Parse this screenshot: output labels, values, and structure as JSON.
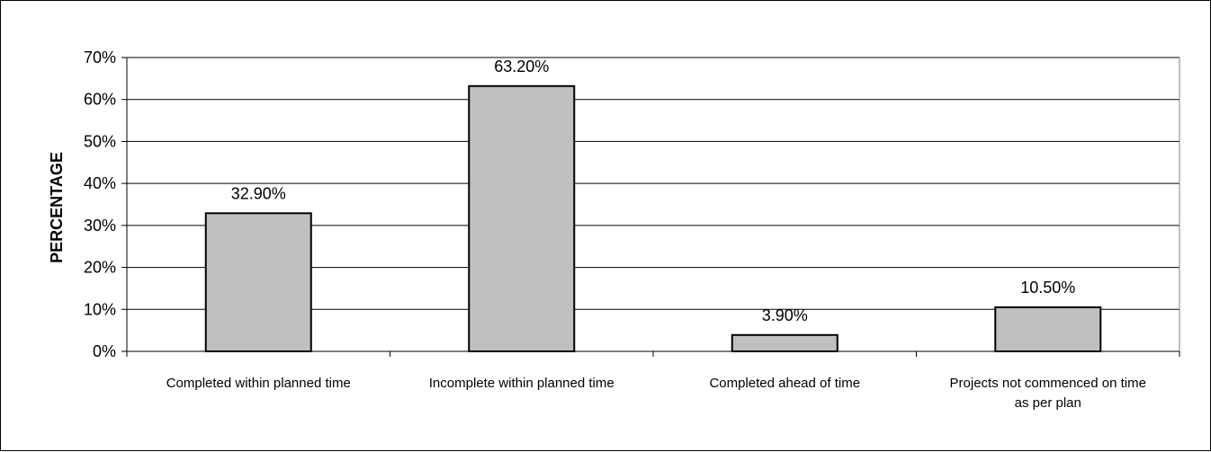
{
  "chart_data": {
    "type": "bar",
    "categories": [
      "Completed within planned time",
      "Incomplete within planned time",
      "Completed ahead of time",
      "Projects not commenced on time as per plan"
    ],
    "category_lines": [
      [
        "Completed within planned time"
      ],
      [
        "Incomplete within planned time"
      ],
      [
        "Completed ahead of time"
      ],
      [
        "Projects not commenced on time",
        "as per plan"
      ]
    ],
    "values": [
      32.9,
      63.2,
      3.9,
      10.5
    ],
    "data_labels": [
      "32.90%",
      "63.20%",
      "3.90%",
      "10.50%"
    ],
    "ylabel": "PERCENTAGE",
    "ylim": [
      0,
      70
    ],
    "yticks": [
      0,
      10,
      20,
      30,
      40,
      50,
      60,
      70
    ],
    "ytick_labels": [
      "0%",
      "10%",
      "20%",
      "30%",
      "40%",
      "50%",
      "60%",
      "70%"
    ],
    "grid": true,
    "legend": "none",
    "bar_color": "#c0c0c0",
    "edge_color": "#000000"
  }
}
